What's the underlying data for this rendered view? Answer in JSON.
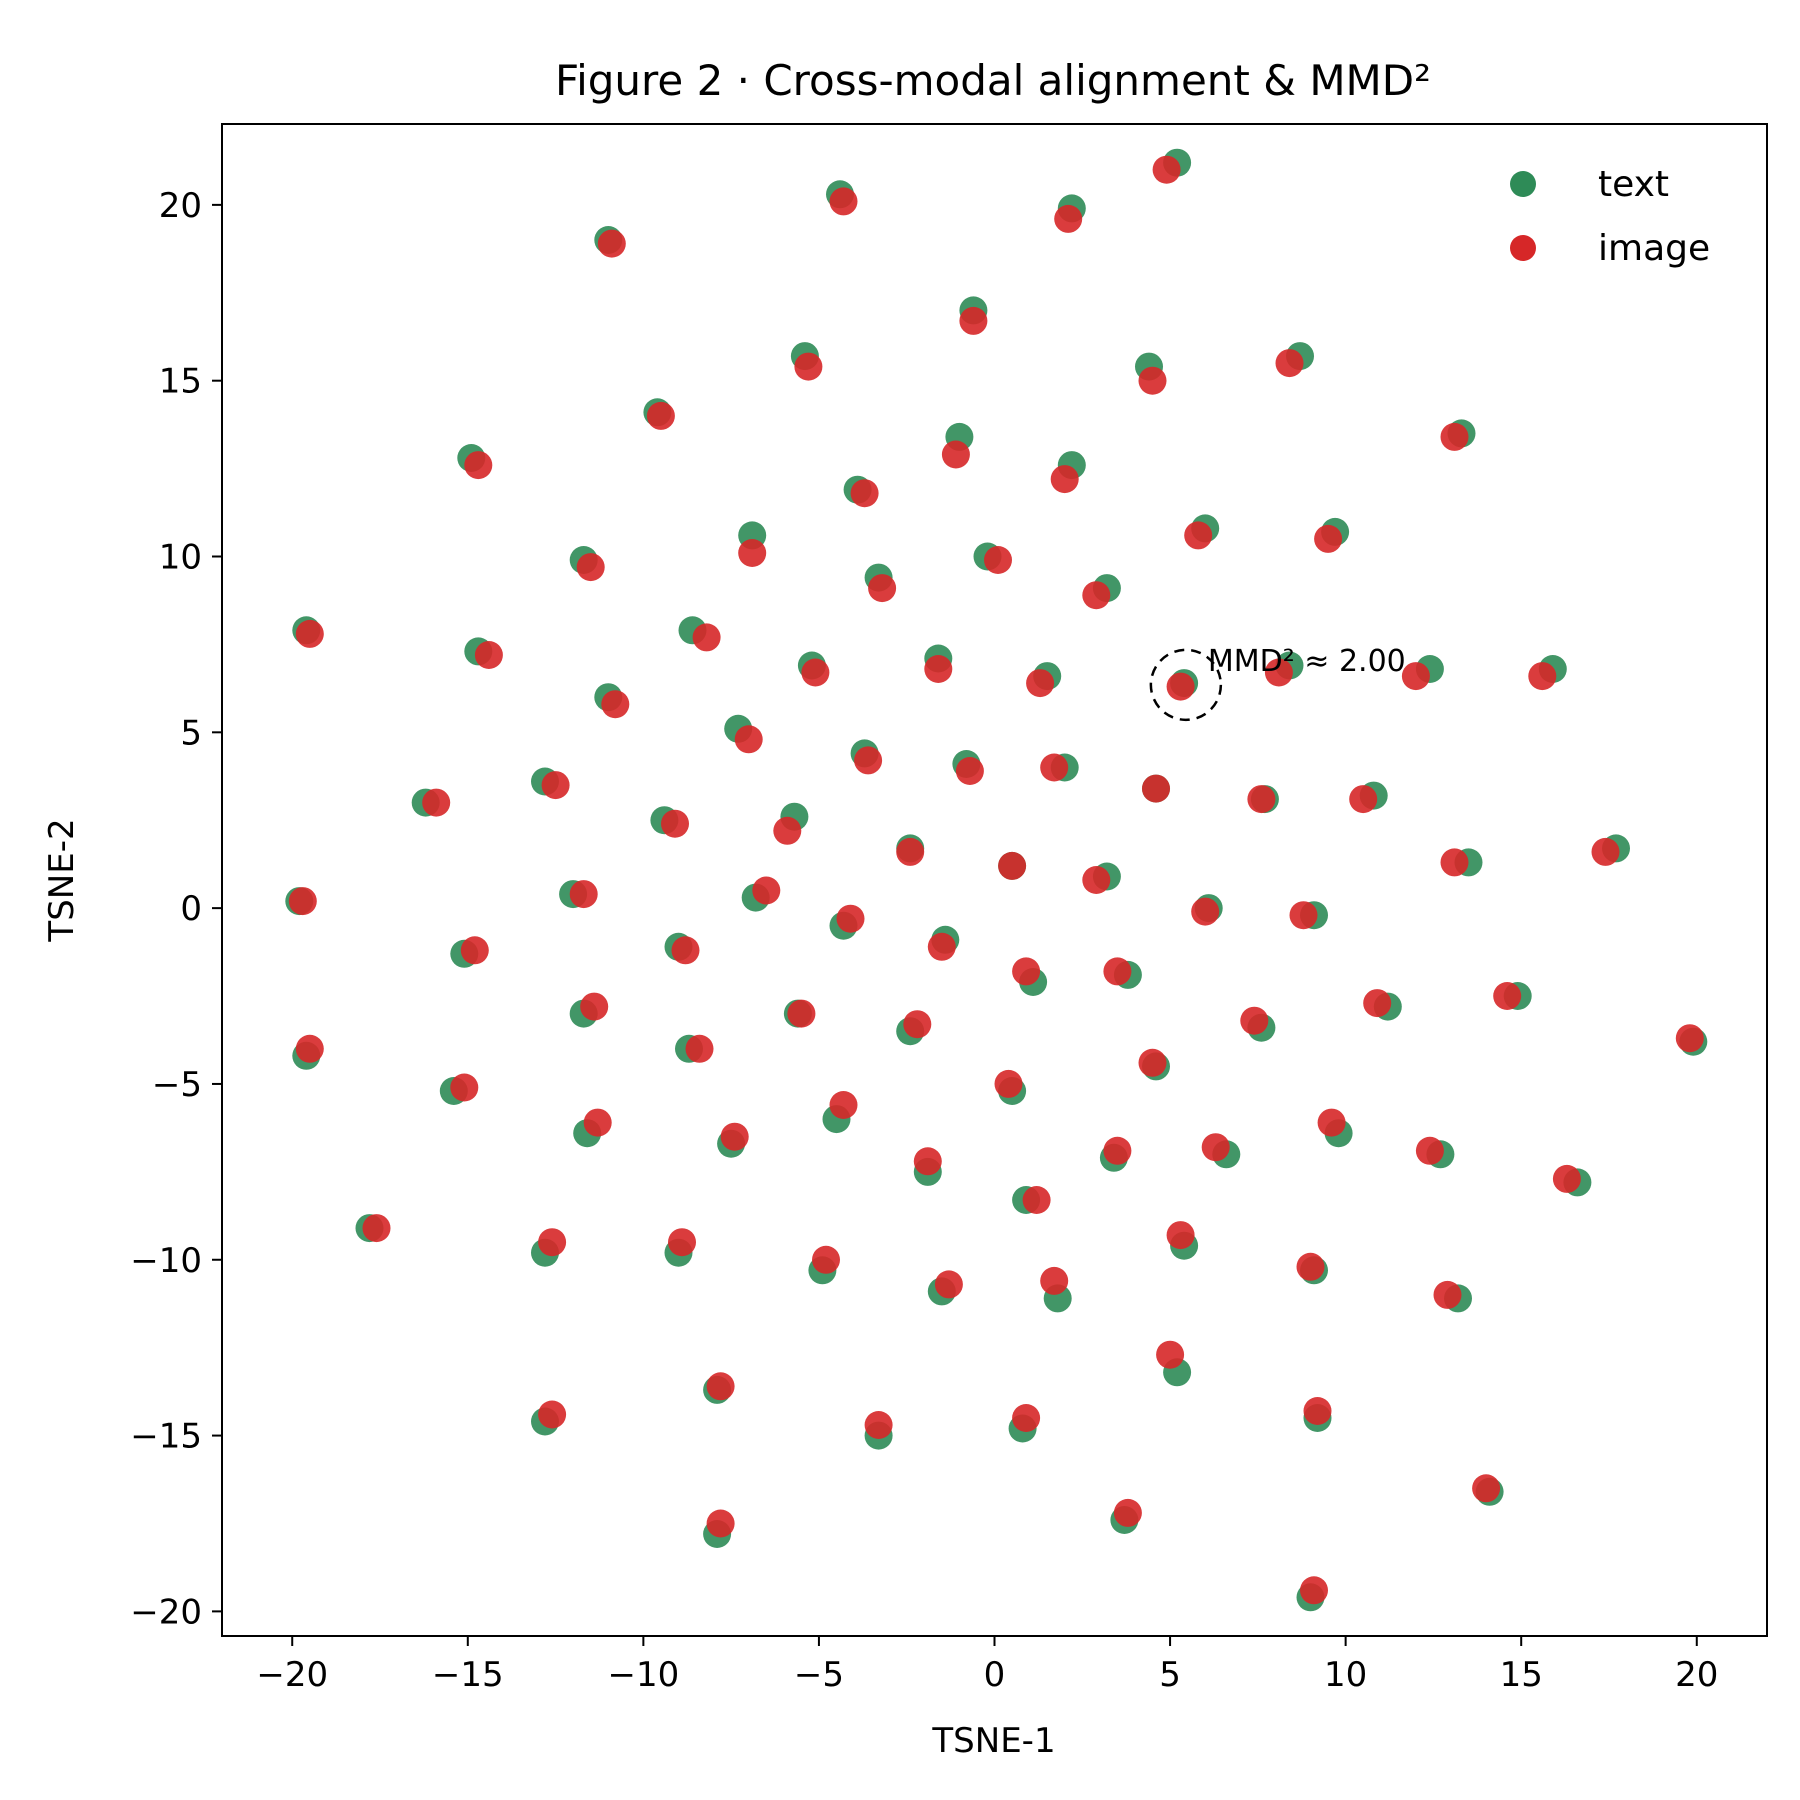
{
  "chart_data": {
    "type": "scatter",
    "title": "Figure 2  ·  Cross-modal alignment & MMD²",
    "xlabel": "TSNE-1",
    "ylabel": "TSNE-2",
    "xlim": [
      -22,
      22
    ],
    "ylim": [
      -20.7,
      22.3
    ],
    "xticks": [
      -20,
      -15,
      -10,
      -5,
      0,
      5,
      10,
      15,
      20
    ],
    "yticks": [
      -20,
      -15,
      -10,
      -5,
      0,
      5,
      10,
      15,
      20
    ],
    "xtick_labels": [
      "−20",
      "−15",
      "−10",
      "−5",
      "0",
      "5",
      "10",
      "15",
      "20"
    ],
    "ytick_labels": [
      "−20",
      "−15",
      "−10",
      "−5",
      "0",
      "5",
      "10",
      "15",
      "20"
    ],
    "grid": false,
    "legend_position": "top-right",
    "annotation": {
      "text": "MMD² ≈ 2.00",
      "x": 5.45,
      "y": 6.35
    },
    "series": [
      {
        "name": "text",
        "color": "#2e8b57",
        "points": [
          [
            5.2,
            21.2
          ],
          [
            -4.4,
            20.3
          ],
          [
            2.2,
            19.9
          ],
          [
            -11.0,
            19.0
          ],
          [
            -0.6,
            17.0
          ],
          [
            -5.4,
            15.7
          ],
          [
            8.7,
            15.7
          ],
          [
            4.4,
            15.4
          ],
          [
            -9.6,
            14.1
          ],
          [
            13.3,
            13.5
          ],
          [
            -1.0,
            13.4
          ],
          [
            -14.9,
            12.8
          ],
          [
            2.2,
            12.6
          ],
          [
            -3.9,
            11.9
          ],
          [
            6.0,
            10.8
          ],
          [
            -6.9,
            10.6
          ],
          [
            9.7,
            10.7
          ],
          [
            -11.7,
            9.9
          ],
          [
            -0.2,
            10.0
          ],
          [
            -3.3,
            9.4
          ],
          [
            3.2,
            9.1
          ],
          [
            -19.6,
            7.9
          ],
          [
            -8.6,
            7.9
          ],
          [
            -14.7,
            7.3
          ],
          [
            5.4,
            6.4
          ],
          [
            8.4,
            6.9
          ],
          [
            12.4,
            6.8
          ],
          [
            -1.6,
            7.1
          ],
          [
            -5.2,
            6.9
          ],
          [
            1.5,
            6.6
          ],
          [
            15.9,
            6.8
          ],
          [
            -11.0,
            6.0
          ],
          [
            -7.3,
            5.1
          ],
          [
            -3.7,
            4.4
          ],
          [
            -0.8,
            4.1
          ],
          [
            2.0,
            4.0
          ],
          [
            -12.8,
            3.6
          ],
          [
            -16.2,
            3.0
          ],
          [
            4.6,
            3.4
          ],
          [
            7.7,
            3.1
          ],
          [
            10.8,
            3.2
          ],
          [
            -5.7,
            2.6
          ],
          [
            -9.4,
            2.5
          ],
          [
            -2.4,
            1.7
          ],
          [
            17.7,
            1.7
          ],
          [
            13.5,
            1.3
          ],
          [
            0.5,
            1.2
          ],
          [
            3.2,
            0.9
          ],
          [
            -19.8,
            0.2
          ],
          [
            -12.0,
            0.4
          ],
          [
            -6.8,
            0.3
          ],
          [
            6.1,
            0.0
          ],
          [
            9.1,
            -0.2
          ],
          [
            -4.3,
            -0.5
          ],
          [
            -1.4,
            -0.9
          ],
          [
            -15.1,
            -1.3
          ],
          [
            -9.0,
            -1.1
          ],
          [
            1.1,
            -2.1
          ],
          [
            3.8,
            -1.9
          ],
          [
            14.9,
            -2.5
          ],
          [
            11.2,
            -2.8
          ],
          [
            -5.6,
            -3.0
          ],
          [
            -11.7,
            -3.0
          ],
          [
            -2.4,
            -3.5
          ],
          [
            7.6,
            -3.4
          ],
          [
            -19.6,
            -4.2
          ],
          [
            -8.7,
            -4.0
          ],
          [
            19.9,
            -3.8
          ],
          [
            4.6,
            -4.5
          ],
          [
            0.5,
            -5.2
          ],
          [
            -15.4,
            -5.2
          ],
          [
            -4.5,
            -6.0
          ],
          [
            -11.6,
            -6.4
          ],
          [
            9.8,
            -6.4
          ],
          [
            -7.5,
            -6.7
          ],
          [
            12.7,
            -7.0
          ],
          [
            6.6,
            -7.0
          ],
          [
            3.4,
            -7.1
          ],
          [
            -1.9,
            -7.5
          ],
          [
            16.6,
            -7.8
          ],
          [
            -17.8,
            -9.1
          ],
          [
            0.9,
            -8.3
          ],
          [
            5.4,
            -9.6
          ],
          [
            -12.8,
            -9.8
          ],
          [
            -9.0,
            -9.8
          ],
          [
            -4.9,
            -10.3
          ],
          [
            9.1,
            -10.3
          ],
          [
            -1.5,
            -10.9
          ],
          [
            1.8,
            -11.1
          ],
          [
            13.2,
            -11.1
          ],
          [
            5.2,
            -13.2
          ],
          [
            -7.9,
            -13.7
          ],
          [
            -12.8,
            -14.6
          ],
          [
            -3.3,
            -15.0
          ],
          [
            0.8,
            -14.8
          ],
          [
            9.2,
            -14.5
          ],
          [
            14.1,
            -16.6
          ],
          [
            3.7,
            -17.4
          ],
          [
            -7.9,
            -17.8
          ],
          [
            9.0,
            -19.6
          ]
        ]
      },
      {
        "name": "image",
        "color": "#d62728",
        "points": [
          [
            4.9,
            21.0
          ],
          [
            -4.3,
            20.1
          ],
          [
            2.1,
            19.6
          ],
          [
            -10.9,
            18.9
          ],
          [
            -0.6,
            16.7
          ],
          [
            -5.3,
            15.4
          ],
          [
            8.4,
            15.5
          ],
          [
            4.5,
            15.0
          ],
          [
            -9.5,
            14.0
          ],
          [
            13.1,
            13.4
          ],
          [
            -1.1,
            12.9
          ],
          [
            -14.7,
            12.6
          ],
          [
            2.0,
            12.2
          ],
          [
            -3.7,
            11.8
          ],
          [
            5.8,
            10.6
          ],
          [
            -6.9,
            10.1
          ],
          [
            9.5,
            10.5
          ],
          [
            -11.5,
            9.7
          ],
          [
            0.1,
            9.9
          ],
          [
            -3.2,
            9.1
          ],
          [
            2.9,
            8.9
          ],
          [
            -19.5,
            7.8
          ],
          [
            -8.2,
            7.7
          ],
          [
            -14.4,
            7.2
          ],
          [
            5.3,
            6.3
          ],
          [
            8.1,
            6.7
          ],
          [
            12.0,
            6.6
          ],
          [
            -1.6,
            6.8
          ],
          [
            -5.1,
            6.7
          ],
          [
            1.3,
            6.4
          ],
          [
            15.6,
            6.6
          ],
          [
            -10.8,
            5.8
          ],
          [
            -7.0,
            4.8
          ],
          [
            -3.6,
            4.2
          ],
          [
            -0.7,
            3.9
          ],
          [
            1.7,
            4.0
          ],
          [
            -12.5,
            3.5
          ],
          [
            -15.9,
            3.0
          ],
          [
            4.6,
            3.4
          ],
          [
            7.6,
            3.1
          ],
          [
            10.5,
            3.1
          ],
          [
            -5.9,
            2.2
          ],
          [
            -9.1,
            2.4
          ],
          [
            -2.4,
            1.6
          ],
          [
            17.4,
            1.6
          ],
          [
            13.1,
            1.3
          ],
          [
            0.5,
            1.2
          ],
          [
            2.9,
            0.8
          ],
          [
            -19.7,
            0.2
          ],
          [
            -11.7,
            0.4
          ],
          [
            -6.5,
            0.5
          ],
          [
            6.0,
            -0.1
          ],
          [
            8.8,
            -0.2
          ],
          [
            -4.1,
            -0.3
          ],
          [
            -1.5,
            -1.1
          ],
          [
            -14.8,
            -1.2
          ],
          [
            -8.8,
            -1.2
          ],
          [
            0.9,
            -1.8
          ],
          [
            3.5,
            -1.8
          ],
          [
            14.6,
            -2.5
          ],
          [
            10.9,
            -2.7
          ],
          [
            -5.5,
            -3.0
          ],
          [
            -11.4,
            -2.8
          ],
          [
            -2.2,
            -3.3
          ],
          [
            7.4,
            -3.2
          ],
          [
            -19.5,
            -4.0
          ],
          [
            -8.4,
            -4.0
          ],
          [
            19.8,
            -3.7
          ],
          [
            4.5,
            -4.4
          ],
          [
            0.4,
            -5.0
          ],
          [
            -15.1,
            -5.1
          ],
          [
            -4.3,
            -5.6
          ],
          [
            -11.3,
            -6.1
          ],
          [
            9.6,
            -6.1
          ],
          [
            -7.4,
            -6.5
          ],
          [
            12.4,
            -6.9
          ],
          [
            6.3,
            -6.8
          ],
          [
            3.5,
            -6.9
          ],
          [
            -1.9,
            -7.2
          ],
          [
            16.3,
            -7.7
          ],
          [
            -17.6,
            -9.1
          ],
          [
            1.2,
            -8.3
          ],
          [
            5.3,
            -9.3
          ],
          [
            -12.6,
            -9.5
          ],
          [
            -8.9,
            -9.5
          ],
          [
            -4.8,
            -10.0
          ],
          [
            9.0,
            -10.2
          ],
          [
            -1.3,
            -10.7
          ],
          [
            1.7,
            -10.6
          ],
          [
            12.9,
            -11.0
          ],
          [
            5.0,
            -12.7
          ],
          [
            -7.8,
            -13.6
          ],
          [
            -12.6,
            -14.4
          ],
          [
            -3.3,
            -14.7
          ],
          [
            0.9,
            -14.5
          ],
          [
            9.2,
            -14.3
          ],
          [
            14.0,
            -16.5
          ],
          [
            3.8,
            -17.2
          ],
          [
            -7.8,
            -17.5
          ],
          [
            9.1,
            -19.4
          ]
        ]
      }
    ]
  }
}
